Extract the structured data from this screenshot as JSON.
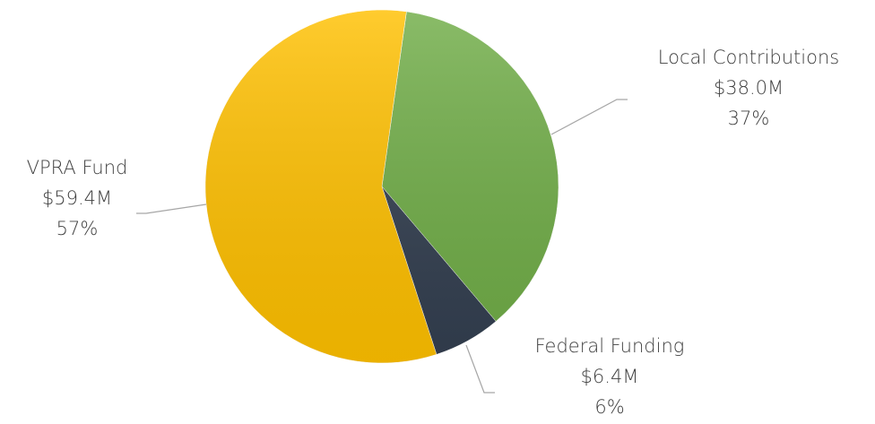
{
  "chart_data": {
    "type": "pie",
    "categories": [
      "Local Contributions",
      "Federal Funding",
      "VPRA Fund"
    ],
    "values": [
      38.0,
      6.4,
      59.4
    ],
    "value_labels": [
      "$38.0M",
      "$6.4M",
      "$59.4M"
    ],
    "percents": [
      37,
      6,
      57
    ],
    "percent_labels": [
      "37%",
      "6%",
      "57%"
    ],
    "colors": [
      "#70ad47",
      "#333f50",
      "#ffc000"
    ]
  }
}
